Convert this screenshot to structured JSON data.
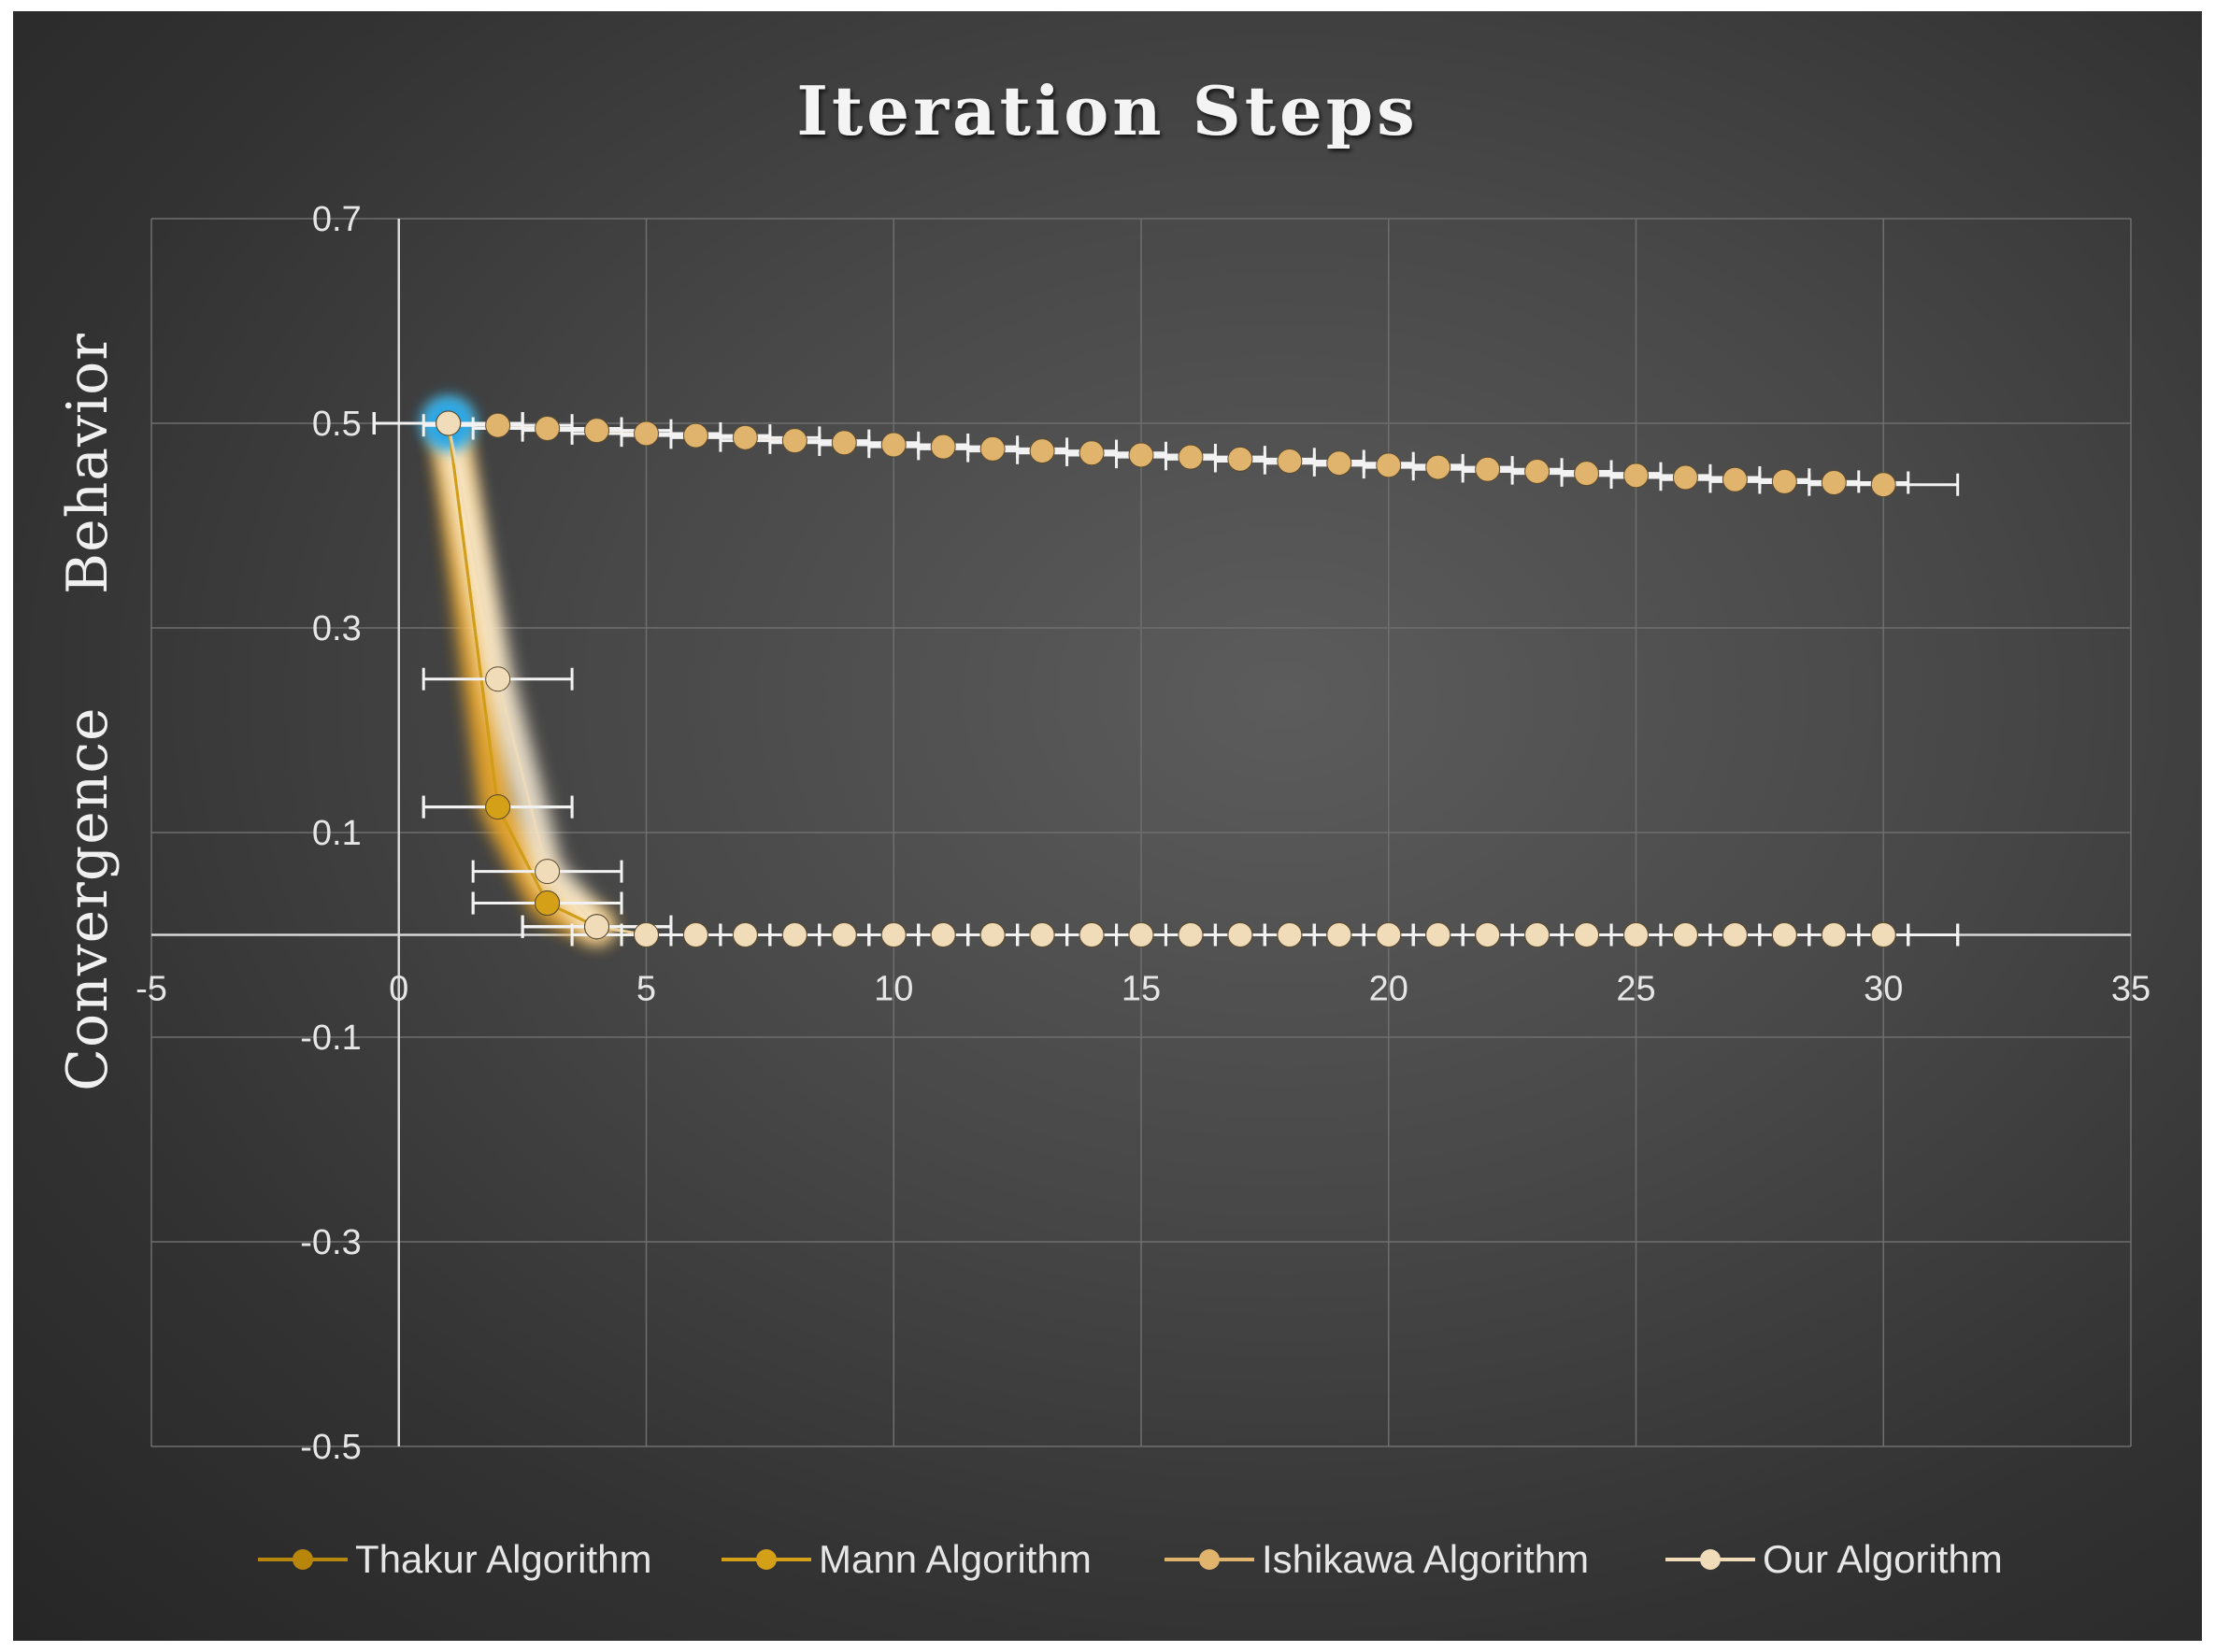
{
  "chart_data": {
    "type": "scatter",
    "title": "Iteration Steps",
    "ylabel": "Convergence      Behavior",
    "xlabel": "",
    "xlim": [
      -5,
      35
    ],
    "ylim": [
      -0.5,
      0.7
    ],
    "x_ticks": [
      -5,
      0,
      5,
      10,
      15,
      20,
      25,
      30,
      35
    ],
    "x_tick_labels": [
      "-5",
      "0",
      "5",
      "10",
      "15",
      "20",
      "25",
      "30",
      "35"
    ],
    "y_ticks": [
      0.7,
      0.5,
      0.3,
      0.1,
      -0.1,
      -0.3,
      -0.5
    ],
    "y_tick_labels": [
      "0.7",
      "0.5",
      "0.3",
      "0.1",
      "-0.1",
      "-0.3",
      "-0.5"
    ],
    "grid": true,
    "legend_position": "bottom",
    "background": "#3a3a3a",
    "series": [
      {
        "name": "Thakur Algorithm",
        "color": "#b8860b",
        "x": [
          1,
          2,
          3,
          4,
          5,
          6,
          7,
          8,
          9,
          10,
          11,
          12,
          13,
          14,
          15,
          16,
          17,
          18,
          19,
          20,
          21,
          22,
          23,
          24,
          25,
          26,
          27,
          28,
          29,
          30
        ],
        "y": [
          0.5,
          0.125,
          0.031,
          0.008,
          0,
          0,
          0,
          0,
          0,
          0,
          0,
          0,
          0,
          0,
          0,
          0,
          0,
          0,
          0,
          0,
          0,
          0,
          0,
          0,
          0,
          0,
          0,
          0,
          0,
          0
        ]
      },
      {
        "name": "Mann Algorithm",
        "color": "#d4a017",
        "x": [
          1,
          2,
          3,
          4,
          5,
          6,
          7,
          8,
          9,
          10,
          11,
          12,
          13,
          14,
          15,
          16,
          17,
          18,
          19,
          20,
          21,
          22,
          23,
          24,
          25,
          26,
          27,
          28,
          29,
          30
        ],
        "y": [
          0.5,
          0.125,
          0.031,
          0.008,
          0,
          0,
          0,
          0,
          0,
          0,
          0,
          0,
          0,
          0,
          0,
          0,
          0,
          0,
          0,
          0,
          0,
          0,
          0,
          0,
          0,
          0,
          0,
          0,
          0,
          0
        ]
      },
      {
        "name": "Ishikawa  Algorithm",
        "color": "#e0b46c",
        "x": [
          1,
          2,
          3,
          4,
          5,
          6,
          7,
          8,
          9,
          10,
          11,
          12,
          13,
          14,
          15,
          16,
          17,
          18,
          19,
          20,
          21,
          22,
          23,
          24,
          25,
          26,
          27,
          28,
          29,
          30
        ],
        "y": [
          0.5,
          0.498,
          0.495,
          0.493,
          0.49,
          0.488,
          0.486,
          0.483,
          0.481,
          0.479,
          0.477,
          0.475,
          0.473,
          0.471,
          0.469,
          0.467,
          0.465,
          0.463,
          0.461,
          0.459,
          0.457,
          0.455,
          0.453,
          0.451,
          0.449,
          0.447,
          0.445,
          0.443,
          0.442,
          0.44
        ]
      },
      {
        "name": "Our Algorithm",
        "color": "#f0dcb8",
        "x": [
          1,
          2,
          3,
          4,
          5,
          6,
          7,
          8,
          9,
          10,
          11,
          12,
          13,
          14,
          15,
          16,
          17,
          18,
          19,
          20,
          21,
          22,
          23,
          24,
          25,
          26,
          27,
          28,
          29,
          30
        ],
        "y": [
          0.5,
          0.25,
          0.062,
          0.008,
          0,
          0,
          0,
          0,
          0,
          0,
          0,
          0,
          0,
          0,
          0,
          0,
          0,
          0,
          0,
          0,
          0,
          0,
          0,
          0,
          0,
          0,
          0,
          0,
          0,
          0
        ]
      }
    ]
  }
}
